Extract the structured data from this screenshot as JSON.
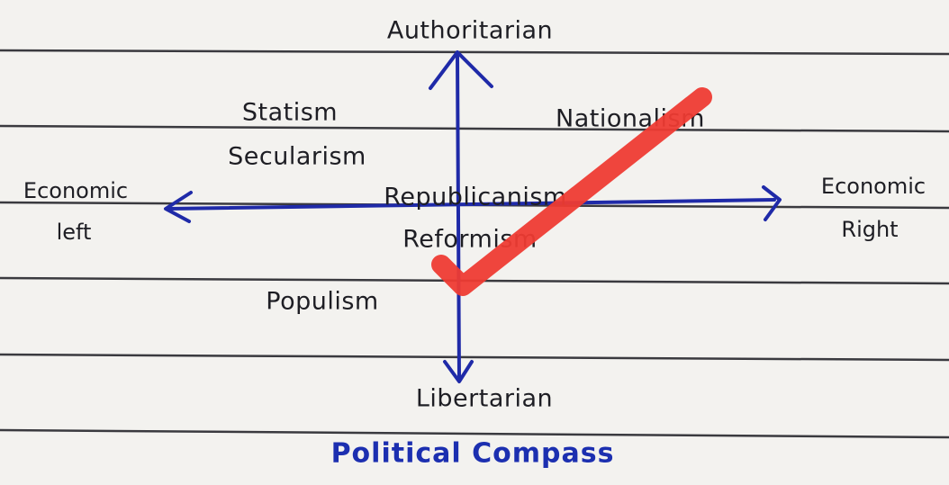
{
  "axes": {
    "top": "Authoritarian",
    "bottom": "Libertarian",
    "left": [
      "Economic",
      "left"
    ],
    "right": [
      "Economic",
      "Right"
    ]
  },
  "ideologies": [
    "Statism",
    "Secularism",
    "Nationalism",
    "Republicanism",
    "Reformism",
    "Populism"
  ],
  "title": "Political Compass"
}
